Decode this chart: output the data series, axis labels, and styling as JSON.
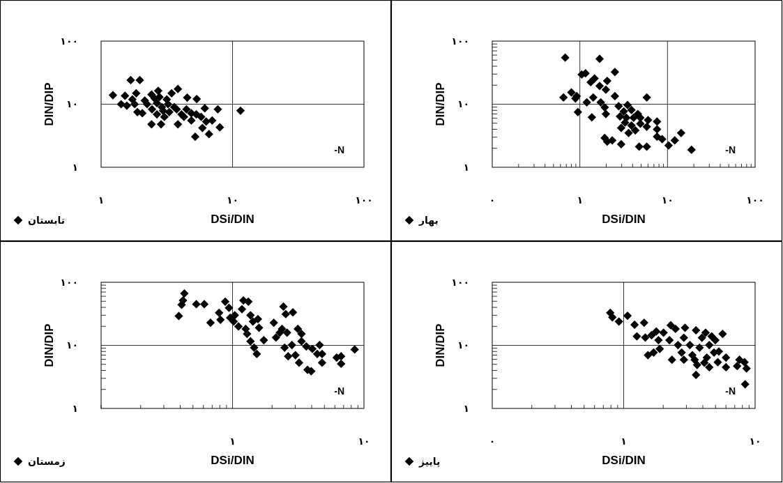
{
  "chart_data": [
    {
      "type": "scatter",
      "xlabel": "DSi/DIN",
      "ylabel": "DIN/DIP",
      "log": "xy",
      "grid": true,
      "legend": "bottom left",
      "marker": "diamond",
      "annotations": [
        "-N"
      ],
      "xlim": [
        1,
        100
      ],
      "ylim": [
        1,
        100
      ],
      "xticks": [
        {
          "value": 1,
          "label": "١"
        },
        {
          "value": 10,
          "label": "١٠"
        },
        {
          "value": 100,
          "label": "١٠٠"
        }
      ],
      "yticks": [
        {
          "value": 1,
          "label": "١"
        },
        {
          "value": 10,
          "label": "١٠"
        },
        {
          "value": 100,
          "label": "١٠٠"
        }
      ],
      "series": [
        {
          "name": "تابستان",
          "color": "#000000",
          "x": [
            1.23,
            1.68,
            1.97,
            1.42,
            1.57,
            1.52,
            1.85,
            1.89,
            2.06,
            2.42,
            2.42,
            2.72,
            2.86,
            2.9,
            3.16,
            3.44,
            3.84,
            3.76,
            3.84,
            4.09,
            4.52,
            4.86,
            4.86,
            5.34,
            5.2,
            5.77,
            6.15,
            6.3,
            5.9,
            6.62,
            7.0,
            7.73,
            8.0,
            11.5,
            2.24,
            2.44,
            2.66,
            2.66,
            2.96,
            3.03,
            3.23,
            3.3,
            3.6,
            1.73,
            1.8,
            2.15,
            2.55,
            2.78,
            4.46,
            4.27,
            5.3
          ],
          "values": [
            13.9,
            24.1,
            24.1,
            10,
            9.5,
            13.6,
            14.9,
            7.5,
            7.2,
            14.2,
            4.8,
            16.3,
            4.8,
            9.0,
            11.9,
            14.9,
            17.4,
            8.3,
            4.8,
            6.9,
            12.7,
            7.2,
            5.5,
            12.1,
            3.05,
            6.3,
            8.6,
            5.3,
            4.2,
            3.35,
            5.5,
            8.3,
            4.3,
            7.9,
            10,
            8.3,
            10.4,
            6.9,
            7.9,
            6.3,
            10,
            7.5,
            9.0,
            11.9,
            10,
            11.4,
            12.4,
            13.0,
            8.3,
            6.3,
            6.9
          ]
        }
      ]
    },
    {
      "type": "scatter",
      "xlabel": "DSi/DIN",
      "ylabel": "DIN/DIP",
      "log": "xy",
      "grid": true,
      "legend": "bottom left",
      "marker": "diamond",
      "annotations": [
        "-N"
      ],
      "xlim": [
        0.1,
        100
      ],
      "ylim": [
        1,
        100
      ],
      "xticks": [
        {
          "value": 0.1,
          "label": "٠"
        },
        {
          "value": 0.2,
          "label": null
        },
        {
          "value": 0.3,
          "label": null
        },
        {
          "value": 0.4,
          "label": null
        },
        {
          "value": 0.5,
          "label": null
        },
        {
          "value": 0.6,
          "label": null
        },
        {
          "value": 0.7,
          "label": null
        },
        {
          "value": 0.8,
          "label": null
        },
        {
          "value": 0.9,
          "label": null
        },
        {
          "value": 1,
          "label": "١"
        },
        {
          "value": 2,
          "label": null
        },
        {
          "value": 3,
          "label": null
        },
        {
          "value": 4,
          "label": null
        },
        {
          "value": 5,
          "label": null
        },
        {
          "value": 6,
          "label": null
        },
        {
          "value": 7,
          "label": null
        },
        {
          "value": 8,
          "label": null
        },
        {
          "value": 9,
          "label": null
        },
        {
          "value": 10,
          "label": "١٠"
        },
        {
          "value": 20,
          "label": null
        },
        {
          "value": 30,
          "label": null
        },
        {
          "value": 40,
          "label": null
        },
        {
          "value": 50,
          "label": null
        },
        {
          "value": 60,
          "label": null
        },
        {
          "value": 70,
          "label": null
        },
        {
          "value": 80,
          "label": null
        },
        {
          "value": 90,
          "label": null
        },
        {
          "value": 100,
          "label": "١٠٠"
        }
      ],
      "yticks": [
        {
          "value": 1,
          "label": "١"
        },
        {
          "value": 2,
          "label": null
        },
        {
          "value": 3,
          "label": null
        },
        {
          "value": 4,
          "label": null
        },
        {
          "value": 5,
          "label": null
        },
        {
          "value": 6,
          "label": null
        },
        {
          "value": 7,
          "label": null
        },
        {
          "value": 8,
          "label": null
        },
        {
          "value": 9,
          "label": null
        },
        {
          "value": 10,
          "label": "١٠"
        },
        {
          "value": 20,
          "label": null
        },
        {
          "value": 30,
          "label": null
        },
        {
          "value": 40,
          "label": null
        },
        {
          "value": 50,
          "label": null
        },
        {
          "value": 60,
          "label": null
        },
        {
          "value": 70,
          "label": null
        },
        {
          "value": 80,
          "label": null
        },
        {
          "value": 90,
          "label": null
        },
        {
          "value": 100,
          "label": "١٠٠"
        }
      ],
      "series": [
        {
          "name": "بهار",
          "color": "#000000",
          "x": [
            0.68,
            1.68,
            2.51,
            0.65,
            0.95,
            1.05,
            1.16,
            0.8,
            0.92,
            0.89,
            1.2,
            1.47,
            1.33,
            2.05,
            1.68,
            1.98,
            1.42,
            1.73,
            1.92,
            1.37,
            1.98,
            2.51,
            2.77,
            2.87,
            3.17,
            3.5,
            3.88,
            4.59,
            6.0,
            5.8,
            7.6,
            7.6,
            2.96,
            3.28,
            3.6,
            3.88,
            4.29,
            4.9,
            5.8,
            1.92,
            2.05,
            2.34,
            2.96,
            4.75,
            5.8,
            7.6,
            8.7,
            10.3,
            12.1,
            14.3,
            18.8,
            3.39,
            4.1,
            4.9
          ],
          "values": [
            54.8,
            52.4,
            32.4,
            12.8,
            7.5,
            29.5,
            30.9,
            15.4,
            13.4,
            12.3,
            10.7,
            25.6,
            22.3,
            23.4,
            19.5,
            17.0,
            12.8,
            10.7,
            8.9,
            6.2,
            7.0,
            13.4,
            9.3,
            6.4,
            7.7,
            9.7,
            8.1,
            7.0,
            5.6,
            12.8,
            5.3,
            4.0,
            4.2,
            5.1,
            3.5,
            4.6,
            3.85,
            4.9,
            4.4,
            2.92,
            2.55,
            2.67,
            2.32,
            2.12,
            2.12,
            3.06,
            2.79,
            2.22,
            2.67,
            3.5,
            1.89,
            6.1,
            6.1,
            6.1
          ]
        }
      ]
    },
    {
      "type": "scatter",
      "xlabel": "DSi/DIN",
      "ylabel": "DIN/DIP",
      "log": "xy",
      "grid": true,
      "legend": "bottom left",
      "marker": "diamond",
      "annotations": [
        "-N"
      ],
      "xlim": [
        0.1,
        10
      ],
      "ylim": [
        1,
        100
      ],
      "xticks": [
        {
          "value": 0.1,
          "label": null
        },
        {
          "value": 0.2,
          "label": null
        },
        {
          "value": 0.3,
          "label": null
        },
        {
          "value": 0.4,
          "label": null
        },
        {
          "value": 0.5,
          "label": null
        },
        {
          "value": 0.6,
          "label": null
        },
        {
          "value": 0.7,
          "label": null
        },
        {
          "value": 0.8,
          "label": null
        },
        {
          "value": 0.9,
          "label": null
        },
        {
          "value": 1,
          "label": "١"
        },
        {
          "value": 2,
          "label": null
        },
        {
          "value": 3,
          "label": null
        },
        {
          "value": 4,
          "label": null
        },
        {
          "value": 5,
          "label": null
        },
        {
          "value": 6,
          "label": null
        },
        {
          "value": 7,
          "label": null
        },
        {
          "value": 8,
          "label": null
        },
        {
          "value": 9,
          "label": null
        },
        {
          "value": 10,
          "label": "١٠"
        }
      ],
      "yticks": [
        {
          "value": 1,
          "label": "١"
        },
        {
          "value": 2,
          "label": null
        },
        {
          "value": 3,
          "label": null
        },
        {
          "value": 4,
          "label": null
        },
        {
          "value": 5,
          "label": null
        },
        {
          "value": 6,
          "label": null
        },
        {
          "value": 7,
          "label": null
        },
        {
          "value": 8,
          "label": null
        },
        {
          "value": 9,
          "label": null
        },
        {
          "value": 10,
          "label": "١٠"
        },
        {
          "value": 20,
          "label": null
        },
        {
          "value": 30,
          "label": null
        },
        {
          "value": 40,
          "label": null
        },
        {
          "value": 50,
          "label": null
        },
        {
          "value": 60,
          "label": null
        },
        {
          "value": 70,
          "label": null
        },
        {
          "value": 80,
          "label": null
        },
        {
          "value": 90,
          "label": null
        },
        {
          "value": 100,
          "label": "١٠٠"
        }
      ],
      "series": [
        {
          "name": "زمستان",
          "color": "#000000",
          "x": [
            0.39,
            0.43,
            0.42,
            0.41,
            0.53,
            0.61,
            0.68,
            0.79,
            0.81,
            0.88,
            0.94,
            0.96,
            1.02,
            1.04,
            1.11,
            1.21,
            1.32,
            1.18,
            1.26,
            1.29,
            1.37,
            1.56,
            1.43,
            1.59,
            1.37,
            1.46,
            1.53,
            1.73,
            2.06,
            2.14,
            2.29,
            2.38,
            2.44,
            2.54,
            2.88,
            2.6,
            2.49,
            2.65,
            2.83,
            3.01,
            3.21,
            3.14,
            3.35,
            3.35,
            3.64,
            3.72,
            3.97,
            4.05,
            4.6,
            4.41,
            4.8,
            4.8,
            6.2,
            6.7,
            6.7,
            8.5
          ],
          "values": [
            29.2,
            66.5,
            51.6,
            43.9,
            45.0,
            45.0,
            22.8,
            32.8,
            25.4,
            49.3,
            39.3,
            27.4,
            23.9,
            30.0,
            19.9,
            51.6,
            49.3,
            37.5,
            18.2,
            15.2,
            30.0,
            26.1,
            23.9,
            19.0,
            11.6,
            9.2,
            7.3,
            12.1,
            22.8,
            13.3,
            15.9,
            18.2,
            41.1,
            31.3,
            33.3,
            15.9,
            9.2,
            6.7,
            10.1,
            7.0,
            5.3,
            18.2,
            15.2,
            11.6,
            9.6,
            4.1,
            3.9,
            8.8,
            10.1,
            7.3,
            7.3,
            5.3,
            6.4,
            6.7,
            5.1,
            8.6
          ]
        }
      ]
    },
    {
      "type": "scatter",
      "xlabel": "DSi/DIN",
      "ylabel": "DIN/DIP",
      "log": "xy",
      "grid": true,
      "legend": "bottom left",
      "marker": "diamond",
      "annotations": [
        "-N"
      ],
      "xlim": [
        0.1,
        10
      ],
      "ylim": [
        1,
        100
      ],
      "xticks": [
        {
          "value": 0.1,
          "label": "٠"
        },
        {
          "value": 0.2,
          "label": null
        },
        {
          "value": 0.3,
          "label": null
        },
        {
          "value": 0.4,
          "label": null
        },
        {
          "value": 0.5,
          "label": null
        },
        {
          "value": 0.6,
          "label": null
        },
        {
          "value": 0.7,
          "label": null
        },
        {
          "value": 0.8,
          "label": null
        },
        {
          "value": 0.9,
          "label": null
        },
        {
          "value": 1,
          "label": "١"
        },
        {
          "value": 2,
          "label": null
        },
        {
          "value": 3,
          "label": null
        },
        {
          "value": 4,
          "label": null
        },
        {
          "value": 5,
          "label": null
        },
        {
          "value": 6,
          "label": null
        },
        {
          "value": 7,
          "label": null
        },
        {
          "value": 8,
          "label": null
        },
        {
          "value": 9,
          "label": null
        },
        {
          "value": 10,
          "label": "١٠"
        }
      ],
      "yticks": [
        {
          "value": 1,
          "label": "١"
        },
        {
          "value": 2,
          "label": null
        },
        {
          "value": 3,
          "label": null
        },
        {
          "value": 4,
          "label": null
        },
        {
          "value": 5,
          "label": null
        },
        {
          "value": 6,
          "label": null
        },
        {
          "value": 7,
          "label": null
        },
        {
          "value": 8,
          "label": null
        },
        {
          "value": 9,
          "label": null
        },
        {
          "value": 10,
          "label": "١٠"
        },
        {
          "value": 20,
          "label": null
        },
        {
          "value": 30,
          "label": null
        },
        {
          "value": 40,
          "label": null
        },
        {
          "value": 50,
          "label": null
        },
        {
          "value": 60,
          "label": null
        },
        {
          "value": 70,
          "label": null
        },
        {
          "value": 80,
          "label": null
        },
        {
          "value": 90,
          "label": null
        },
        {
          "value": 100,
          "label": "١٠٠"
        }
      ],
      "series": [
        {
          "name": "پاییز",
          "color": "#000000",
          "x": [
            0.79,
            0.82,
            0.92,
            1.07,
            1.21,
            1.43,
            1.26,
            1.46,
            1.63,
            1.77,
            1.53,
            1.69,
            1.88,
            1.84,
            2.01,
            2.28,
            2.23,
            2.48,
            2.33,
            2.59,
            2.76,
            2.87,
            2.93,
            2.87,
            3.19,
            3.33,
            3.55,
            3.62,
            3.55,
            3.78,
            3.94,
            4.2,
            4.29,
            4.48,
            4.48,
            4.67,
            4.87,
            4.98,
            5.2,
            5.3,
            5.66,
            6.0,
            6.0,
            7.3,
            7.6,
            8.3,
            8.6,
            8.4,
            4.11,
            3.47
          ],
          "values": [
            32.8,
            27.8,
            23.9,
            29.4,
            21.2,
            22.8,
            13.9,
            13.3,
            14.5,
            16.6,
            7.0,
            7.7,
            8.8,
            12.1,
            15.9,
            20.8,
            12.1,
            18.2,
            5.9,
            10.1,
            7.7,
            5.9,
            19.0,
            13.2,
            10.1,
            7.0,
            17.3,
            4.9,
            3.4,
            9.2,
            13.2,
            15.9,
            6.4,
            4.5,
            10.1,
            13.9,
            7.7,
            12.1,
            5.4,
            8.0,
            15.2,
            6.4,
            4.5,
            4.7,
            5.9,
            5.4,
            4.3,
            2.42,
            5.3,
            5.9
          ]
        }
      ]
    }
  ]
}
